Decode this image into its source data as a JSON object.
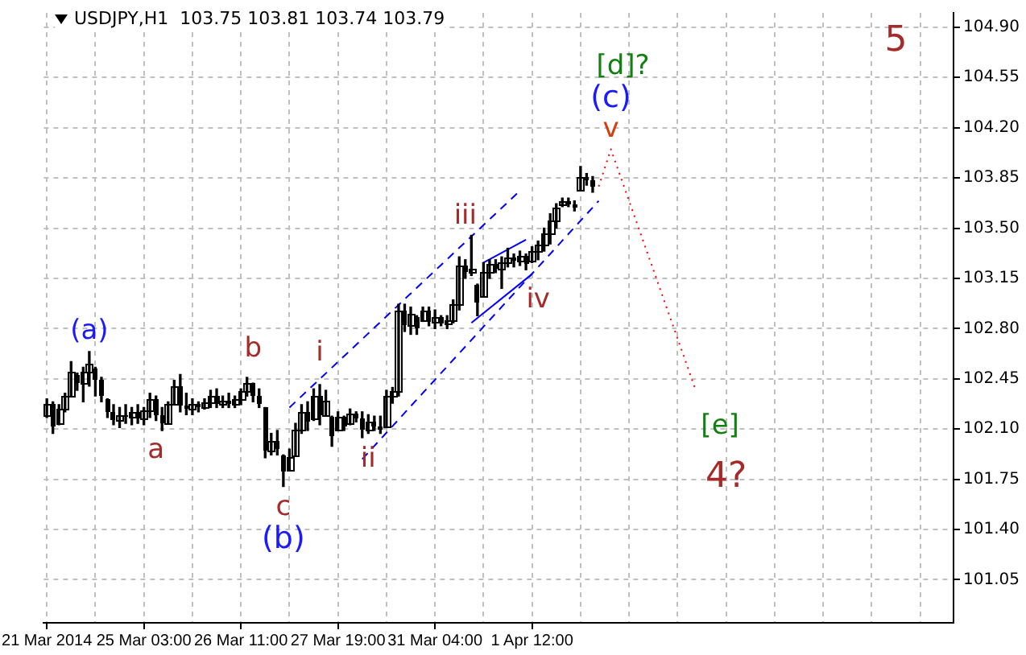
{
  "chart_data": {
    "type": "candlestick",
    "title": "USDJPY,H1  103.75 103.81 103.74 103.79",
    "categories": [
      "21 Mar 2014",
      null,
      null,
      null,
      null,
      null,
      null,
      null,
      null,
      null,
      null,
      null,
      null,
      null,
      null,
      null,
      "25 Mar 03:00",
      null,
      null,
      null,
      null,
      null,
      null,
      null,
      null,
      null,
      null,
      null,
      null,
      null,
      null,
      null,
      "26 Mar 11:00",
      null,
      null,
      null,
      null,
      null,
      null,
      null,
      null,
      null,
      null,
      null,
      null,
      null,
      null,
      null,
      "27 Mar 19:00",
      null,
      null,
      null,
      null,
      null,
      null,
      null,
      null,
      null,
      null,
      null,
      null,
      null,
      null,
      null,
      "31 Mar 04:00",
      null,
      null,
      null,
      null,
      null,
      null,
      null,
      null,
      null,
      null,
      null,
      null,
      null,
      null,
      null,
      "1 Apr 12:00",
      null,
      null,
      null,
      null,
      null,
      null,
      null,
      null,
      null,
      null,
      null,
      null,
      null,
      null,
      null,
      null,
      null,
      null,
      null,
      null,
      null,
      null,
      null,
      null,
      null,
      null,
      null,
      null,
      null,
      null,
      null,
      null,
      null,
      null,
      null,
      null,
      null,
      null,
      null,
      null,
      null,
      null,
      null,
      null,
      null,
      null,
      null,
      null,
      null,
      null,
      null,
      null,
      null,
      null,
      null,
      null,
      null,
      null,
      null,
      null,
      null,
      null,
      null,
      null,
      null,
      null,
      null,
      null,
      null
    ],
    "color": "#000000",
    "ohlc": [
      [
        102.2,
        102.31,
        102.18,
        102.27
      ],
      [
        102.27,
        102.29,
        102.07,
        102.12
      ],
      [
        102.14,
        102.27,
        102.13,
        102.24
      ],
      [
        102.24,
        102.35,
        102.22,
        102.33
      ],
      [
        102.33,
        102.57,
        102.33,
        102.5
      ],
      [
        102.48,
        102.49,
        102.37,
        102.42
      ],
      [
        102.42,
        102.53,
        102.29,
        102.5
      ],
      [
        102.5,
        102.64,
        102.4,
        102.55
      ],
      [
        102.52,
        102.53,
        102.33,
        102.44
      ],
      [
        102.44,
        102.46,
        102.29,
        102.33
      ],
      [
        102.31,
        102.31,
        102.18,
        102.22
      ],
      [
        102.22,
        102.27,
        102.13,
        102.16
      ],
      [
        102.16,
        102.25,
        102.11,
        102.2
      ],
      [
        102.2,
        102.27,
        102.14,
        102.18
      ],
      [
        102.18,
        102.25,
        102.13,
        102.22
      ],
      [
        102.22,
        102.27,
        102.14,
        102.17
      ],
      [
        102.17,
        102.25,
        102.13,
        102.23
      ],
      [
        102.23,
        102.35,
        102.18,
        102.31
      ],
      [
        102.31,
        102.33,
        102.16,
        102.2
      ],
      [
        102.2,
        102.25,
        102.09,
        102.14
      ],
      [
        102.14,
        102.29,
        102.14,
        102.27
      ],
      [
        102.27,
        102.44,
        102.27,
        102.4
      ],
      [
        102.4,
        102.48,
        102.22,
        102.26
      ],
      [
        102.26,
        102.35,
        102.2,
        102.24
      ],
      [
        102.24,
        102.31,
        102.2,
        102.28
      ],
      [
        102.28,
        102.29,
        102.22,
        102.25
      ],
      [
        102.25,
        102.31,
        102.24,
        102.29
      ],
      [
        102.29,
        102.37,
        102.25,
        102.33
      ],
      [
        102.33,
        102.38,
        102.25,
        102.28
      ],
      [
        102.28,
        102.33,
        102.25,
        102.3
      ],
      [
        102.3,
        102.35,
        102.25,
        102.27
      ],
      [
        102.27,
        102.33,
        102.25,
        102.31
      ],
      [
        102.31,
        102.38,
        102.27,
        102.36
      ],
      [
        102.36,
        102.46,
        102.33,
        102.42
      ],
      [
        102.42,
        102.42,
        102.29,
        102.33
      ],
      [
        102.33,
        102.38,
        102.25,
        102.27
      ],
      [
        102.25,
        102.25,
        101.9,
        101.95
      ],
      [
        101.95,
        102.07,
        101.92,
        102.02
      ],
      [
        102.02,
        102.09,
        101.92,
        101.96
      ],
      [
        101.92,
        101.92,
        101.7,
        101.8
      ],
      [
        101.82,
        101.96,
        101.81,
        101.9
      ],
      [
        101.92,
        102.14,
        101.92,
        102.1
      ],
      [
        102.1,
        102.27,
        102.07,
        102.22
      ],
      [
        102.22,
        102.29,
        102.09,
        102.15
      ],
      [
        102.17,
        102.38,
        102.16,
        102.33
      ],
      [
        102.33,
        102.41,
        102.13,
        102.2
      ],
      [
        102.2,
        102.37,
        102.19,
        102.3
      ],
      [
        102.19,
        102.19,
        101.98,
        102.05
      ],
      [
        102.1,
        102.22,
        102.09,
        102.18
      ],
      [
        102.18,
        102.19,
        102.09,
        102.12
      ],
      [
        102.14,
        102.24,
        102.13,
        102.21
      ],
      [
        102.21,
        102.22,
        102.15,
        102.17
      ],
      [
        102.17,
        102.22,
        102.04,
        102.1
      ],
      [
        102.1,
        102.2,
        102.07,
        102.15
      ],
      [
        102.15,
        102.19,
        102.09,
        102.12
      ],
      [
        102.12,
        102.19,
        102.07,
        102.1
      ],
      [
        102.12,
        102.37,
        102.11,
        102.33
      ],
      [
        102.33,
        102.39,
        102.28,
        102.36
      ],
      [
        102.36,
        102.97,
        102.33,
        102.92
      ],
      [
        102.92,
        102.97,
        102.78,
        102.83
      ],
      [
        102.83,
        102.95,
        102.76,
        102.9
      ],
      [
        102.88,
        102.89,
        102.76,
        102.8
      ],
      [
        102.86,
        102.95,
        102.85,
        102.92
      ],
      [
        102.92,
        102.95,
        102.82,
        102.85
      ],
      [
        102.85,
        102.93,
        102.8,
        102.88
      ],
      [
        102.88,
        102.89,
        102.82,
        102.84
      ],
      [
        102.84,
        102.89,
        102.8,
        102.86
      ],
      [
        102.86,
        103.0,
        102.84,
        102.97
      ],
      [
        102.97,
        103.3,
        102.93,
        103.24
      ],
      [
        103.24,
        103.28,
        103.15,
        103.2
      ],
      [
        103.2,
        103.45,
        103.17,
        103.22
      ],
      [
        103.11,
        103.11,
        102.89,
        102.98
      ],
      [
        103.03,
        103.26,
        103.02,
        103.2
      ],
      [
        103.2,
        103.28,
        103.15,
        103.25
      ],
      [
        103.25,
        103.28,
        103.19,
        103.22
      ],
      [
        103.22,
        103.3,
        103.08,
        103.26
      ],
      [
        103.26,
        103.36,
        103.23,
        103.3
      ],
      [
        103.3,
        103.32,
        103.23,
        103.27
      ],
      [
        103.27,
        103.34,
        103.24,
        103.31
      ],
      [
        103.31,
        103.32,
        103.21,
        103.25
      ],
      [
        103.27,
        103.37,
        103.26,
        103.34
      ],
      [
        103.34,
        103.41,
        103.28,
        103.38
      ],
      [
        103.38,
        103.5,
        103.34,
        103.46
      ],
      [
        103.46,
        103.6,
        103.39,
        103.55
      ],
      [
        103.55,
        103.67,
        103.5,
        103.64
      ],
      [
        103.66,
        103.71,
        103.65,
        103.69
      ],
      [
        103.69,
        103.71,
        103.65,
        103.67
      ],
      [
        103.67,
        103.69,
        103.62,
        103.64
      ],
      [
        103.77,
        103.93,
        103.76,
        103.86
      ],
      [
        103.86,
        103.88,
        103.8,
        103.83
      ],
      [
        103.83,
        103.86,
        103.75,
        103.79
      ],
      null,
      null,
      null,
      null,
      null,
      null,
      null,
      null,
      null,
      null,
      null,
      null,
      null,
      null,
      null,
      null,
      null,
      null,
      null,
      null,
      null,
      null,
      null,
      null,
      null,
      null,
      null,
      null,
      null,
      null,
      null,
      null,
      null,
      null,
      null,
      null,
      null,
      null,
      null,
      null,
      null,
      null,
      null,
      null,
      null,
      null,
      null,
      null,
      null,
      null,
      null,
      null,
      null,
      null,
      null,
      null,
      null,
      null,
      null
    ],
    "series": [
      {
        "type": "line",
        "color": "#0000ff",
        "line_style": "dashed",
        "values": [
          null,
          null,
          null,
          null,
          null,
          null,
          null,
          null,
          null,
          null,
          null,
          null,
          null,
          null,
          null,
          null,
          null,
          null,
          null,
          null,
          null,
          null,
          null,
          null,
          null,
          null,
          null,
          null,
          null,
          null,
          null,
          null,
          null,
          null,
          null,
          null,
          null,
          null,
          null,
          null,
          102.25,
          null,
          null,
          null,
          null,
          null,
          null,
          null,
          null,
          null,
          null,
          null,
          null,
          null,
          null,
          null,
          null,
          null,
          null,
          null,
          null,
          null,
          null,
          null,
          null,
          null,
          null,
          null,
          null,
          null,
          null,
          null,
          null,
          null,
          null,
          null,
          null,
          null,
          103.76,
          null,
          null,
          null,
          null,
          null,
          null,
          null,
          null,
          null,
          null,
          null,
          null,
          null,
          null,
          null,
          null,
          null,
          null,
          null,
          null,
          null,
          null,
          null,
          null,
          null,
          null,
          null,
          null,
          null,
          null,
          null,
          null,
          null,
          null,
          null,
          null,
          null,
          null,
          null,
          null,
          null,
          null,
          null,
          null,
          null,
          null,
          null,
          null,
          null,
          null,
          null,
          null,
          null,
          null,
          null,
          null,
          null,
          null,
          null,
          null,
          null,
          null,
          null,
          null,
          null,
          null,
          null,
          null,
          null,
          null,
          null
        ]
      },
      {
        "type": "line",
        "color": "#0000ff",
        "line_style": "dashed",
        "values": [
          null,
          null,
          null,
          null,
          null,
          null,
          null,
          null,
          null,
          null,
          null,
          null,
          null,
          null,
          null,
          null,
          null,
          null,
          null,
          null,
          null,
          null,
          null,
          null,
          null,
          null,
          null,
          null,
          null,
          null,
          null,
          null,
          null,
          null,
          null,
          null,
          null,
          null,
          null,
          null,
          null,
          null,
          null,
          null,
          null,
          null,
          null,
          null,
          null,
          null,
          null,
          null,
          101.89,
          null,
          null,
          null,
          null,
          null,
          null,
          null,
          null,
          null,
          null,
          null,
          null,
          null,
          null,
          null,
          null,
          null,
          null,
          null,
          null,
          null,
          null,
          null,
          null,
          null,
          null,
          null,
          null,
          null,
          null,
          null,
          null,
          null,
          null,
          null,
          null,
          null,
          null,
          103.69,
          null,
          null,
          null,
          null,
          null,
          null,
          null,
          null,
          null,
          null,
          null,
          null,
          null,
          null,
          null,
          null,
          null,
          null,
          null,
          null,
          null,
          null,
          null,
          null,
          null,
          null,
          null,
          null,
          null,
          null,
          null,
          null,
          null,
          null,
          null,
          null,
          null,
          null,
          null,
          null,
          null,
          null,
          null,
          null,
          null,
          null,
          null,
          null,
          null,
          null,
          null,
          null,
          null,
          null,
          null,
          null,
          null,
          null
        ]
      },
      {
        "type": "line",
        "color": "#0000ff",
        "line_style": "solid",
        "values": [
          null,
          null,
          null,
          null,
          null,
          null,
          null,
          null,
          null,
          null,
          null,
          null,
          null,
          null,
          null,
          null,
          null,
          null,
          null,
          null,
          null,
          null,
          null,
          null,
          null,
          null,
          null,
          null,
          null,
          null,
          null,
          null,
          null,
          null,
          null,
          null,
          null,
          null,
          null,
          null,
          null,
          null,
          null,
          null,
          null,
          null,
          null,
          null,
          null,
          null,
          null,
          null,
          null,
          null,
          null,
          null,
          null,
          null,
          null,
          null,
          null,
          null,
          null,
          null,
          null,
          null,
          null,
          null,
          null,
          null,
          null,
          null,
          103.26,
          null,
          null,
          null,
          null,
          null,
          null,
          103.42,
          null,
          null,
          null,
          null,
          null,
          null,
          null,
          null,
          null,
          null,
          null,
          null,
          null,
          null,
          null,
          null,
          null,
          null,
          null,
          null,
          null,
          null,
          null,
          null,
          null,
          null,
          null,
          null,
          null,
          null,
          null,
          null,
          null,
          null,
          null,
          null,
          null,
          null,
          null,
          null,
          null,
          null,
          null,
          null,
          null,
          null,
          null,
          null,
          null,
          null,
          null,
          null,
          null,
          null,
          null,
          null,
          null,
          null,
          null,
          null,
          null,
          null,
          null,
          null,
          null,
          null,
          null,
          null,
          null,
          null
        ]
      },
      {
        "type": "line",
        "color": "#0000ff",
        "line_style": "solid",
        "values": [
          null,
          null,
          null,
          null,
          null,
          null,
          null,
          null,
          null,
          null,
          null,
          null,
          null,
          null,
          null,
          null,
          null,
          null,
          null,
          null,
          null,
          null,
          null,
          null,
          null,
          null,
          null,
          null,
          null,
          null,
          null,
          null,
          null,
          null,
          null,
          null,
          null,
          null,
          null,
          null,
          null,
          null,
          null,
          null,
          null,
          null,
          null,
          null,
          null,
          null,
          null,
          null,
          null,
          null,
          null,
          null,
          null,
          null,
          null,
          null,
          null,
          null,
          null,
          null,
          null,
          null,
          null,
          null,
          null,
          null,
          102.84,
          null,
          null,
          null,
          null,
          null,
          null,
          null,
          null,
          null,
          103.18,
          null,
          null,
          null,
          null,
          null,
          null,
          null,
          null,
          null,
          null,
          null,
          null,
          null,
          null,
          null,
          null,
          null,
          null,
          null,
          null,
          null,
          null,
          null,
          null,
          null,
          null,
          null,
          null,
          null,
          null,
          null,
          null,
          null,
          null,
          null,
          null,
          null,
          null,
          null,
          null,
          null,
          null,
          null,
          null,
          null,
          null,
          null,
          null,
          null,
          null,
          null,
          null,
          null,
          null,
          null,
          null,
          null,
          null,
          null,
          null,
          null,
          null,
          null,
          null,
          null,
          null,
          null,
          null,
          null
        ]
      },
      {
        "type": "line",
        "color": "#ff0000",
        "line_style": "dotted",
        "values": [
          null,
          null,
          null,
          null,
          null,
          null,
          null,
          null,
          null,
          null,
          null,
          null,
          null,
          null,
          null,
          null,
          null,
          null,
          null,
          null,
          null,
          null,
          null,
          null,
          null,
          null,
          null,
          null,
          null,
          null,
          null,
          null,
          null,
          null,
          null,
          null,
          null,
          null,
          null,
          null,
          null,
          null,
          null,
          null,
          null,
          null,
          null,
          null,
          null,
          null,
          null,
          null,
          null,
          null,
          null,
          null,
          null,
          null,
          null,
          null,
          null,
          null,
          null,
          null,
          null,
          null,
          null,
          null,
          null,
          null,
          null,
          null,
          null,
          null,
          null,
          null,
          null,
          null,
          null,
          null,
          null,
          null,
          null,
          null,
          null,
          null,
          null,
          null,
          null,
          null,
          null,
          103.79,
          null,
          104.05,
          null,
          null,
          null,
          null,
          null,
          null,
          null,
          null,
          null,
          null,
          null,
          null,
          null,
          102.37,
          null,
          null,
          null,
          null,
          null,
          null,
          null,
          null,
          null,
          null,
          null,
          null,
          null,
          null,
          null,
          null,
          null,
          null,
          null,
          null,
          null,
          null,
          null,
          null,
          null,
          null,
          null,
          null,
          null,
          null,
          null,
          null,
          null,
          null,
          null,
          null,
          null,
          null,
          null,
          null,
          null,
          null
        ]
      }
    ],
    "ylim": [
      100.75,
      105.0
    ],
    "yticks": [
      {
        "value": 101.05,
        "label": "101.05"
      },
      {
        "value": 101.4,
        "label": "101.40"
      },
      {
        "value": 101.75,
        "label": "101.75"
      },
      {
        "value": 102.1,
        "label": "102.10"
      },
      {
        "value": 102.45,
        "label": "102.45"
      },
      {
        "value": 102.8,
        "label": "102.80"
      },
      {
        "value": 103.15,
        "label": "103.15"
      },
      {
        "value": 103.5,
        "label": "103.50"
      },
      {
        "value": 103.85,
        "label": "103.85"
      },
      {
        "value": 104.2,
        "label": "104.20"
      },
      {
        "value": 104.55,
        "label": "104.55"
      },
      {
        "value": 104.9,
        "label": "104.90"
      }
    ],
    "grid": true,
    "annotations": [
      "(a)",
      "a",
      "b",
      "c",
      "(b)",
      "i",
      "ii",
      "iii",
      "iv",
      "v",
      "(c)",
      "[d]?",
      "[e]",
      "4?",
      "5"
    ]
  }
}
